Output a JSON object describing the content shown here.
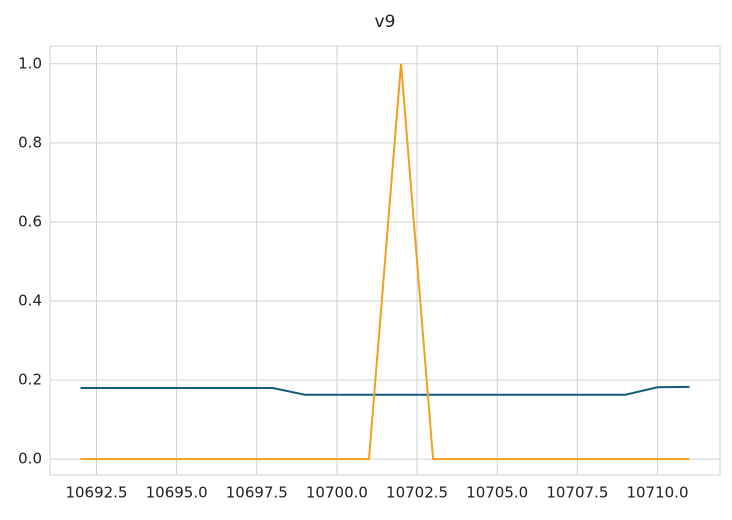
{
  "chart_data": {
    "type": "line",
    "title": "v9",
    "x": [
      10692,
      10693,
      10694,
      10695,
      10696,
      10697,
      10698,
      10699,
      10700,
      10701,
      10702,
      10703,
      10704,
      10705,
      10706,
      10707,
      10708,
      10709,
      10710,
      10711
    ],
    "series": [
      {
        "color": "#135b7c",
        "values": [
          0.18,
          0.18,
          0.18,
          0.18,
          0.18,
          0.18,
          0.18,
          0.163,
          0.163,
          0.163,
          0.163,
          0.163,
          0.163,
          0.163,
          0.163,
          0.163,
          0.163,
          0.163,
          0.182,
          0.183
        ]
      },
      {
        "color": "#f0a020",
        "values": [
          0,
          0,
          0,
          0,
          0,
          0,
          0,
          0,
          0,
          0,
          1,
          0,
          0,
          0,
          0,
          0,
          0,
          0,
          0,
          0
        ]
      }
    ],
    "xlim": [
      10691.05,
      10711.95
    ],
    "xticks": [
      10692.5,
      {
        "value": 10695,
        "label": "10695.0"
      },
      10697.5,
      {
        "value": 10700,
        "label": "10700.0"
      },
      10702.5,
      {
        "value": 10705,
        "label": "10705.0"
      },
      10707.5,
      {
        "value": 10710,
        "label": "10710.0"
      }
    ],
    "ylim": [
      -0.04,
      1.045
    ],
    "yticks": [
      {
        "value": 0,
        "label": "0.0"
      },
      0.2,
      0.4,
      0.6,
      0.8,
      {
        "value": 1,
        "label": "1.0"
      }
    ],
    "grid": true
  }
}
